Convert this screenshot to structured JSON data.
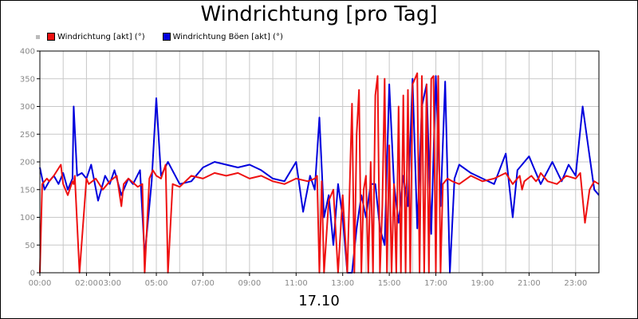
{
  "chart_data": {
    "type": "line",
    "title": "Windrichtung [pro Tag]",
    "xlabel": "17.10",
    "ylabel": "",
    "ylim": [
      0,
      400
    ],
    "yticks": [
      0,
      50,
      100,
      150,
      200,
      250,
      300,
      350,
      400
    ],
    "xlim": [
      0,
      24
    ],
    "xticks": [
      {
        "x": 0,
        "label": "00:00"
      },
      {
        "x": 2,
        "label": "02:00"
      },
      {
        "x": 3,
        "label": "03:00"
      },
      {
        "x": 5,
        "label": "05:00"
      },
      {
        "x": 7,
        "label": "07:00"
      },
      {
        "x": 9,
        "label": "09:00"
      },
      {
        "x": 11,
        "label": "11:00"
      },
      {
        "x": 13,
        "label": "13:00"
      },
      {
        "x": 15,
        "label": "15:00"
      },
      {
        "x": 17,
        "label": "17:00"
      },
      {
        "x": 19,
        "label": "19:00"
      },
      {
        "x": 21,
        "label": "21:00"
      },
      {
        "x": 23,
        "label": "23:00"
      }
    ],
    "grid": true,
    "legend_position": "top-left",
    "series": [
      {
        "name": "Windrichtung [akt] (°)",
        "color": "#ee1111",
        "x": [
          0,
          0.1,
          0.3,
          0.4,
          0.6,
          0.9,
          1.0,
          1.2,
          1.4,
          1.45,
          1.5,
          1.7,
          2.0,
          2.1,
          2.4,
          2.7,
          3.0,
          3.3,
          3.5,
          3.6,
          3.8,
          4.2,
          4.4,
          4.5,
          4.7,
          4.85,
          5.0,
          5.2,
          5.4,
          5.5,
          5.7,
          6.0,
          6.5,
          7.0,
          7.5,
          8.0,
          8.5,
          9.0,
          9.5,
          10.0,
          10.5,
          11.0,
          11.5,
          11.8,
          11.9,
          12.0,
          12.1,
          12.2,
          12.4,
          12.6,
          12.8,
          13.0,
          13.2,
          13.4,
          13.5,
          13.6,
          13.7,
          13.8,
          13.9,
          14.0,
          14.1,
          14.2,
          14.3,
          14.4,
          14.5,
          14.6,
          14.7,
          14.8,
          14.9,
          15.0,
          15.1,
          15.2,
          15.3,
          15.4,
          15.5,
          15.6,
          15.7,
          15.8,
          15.9,
          16.0,
          16.1,
          16.2,
          16.3,
          16.4,
          16.5,
          16.6,
          16.7,
          16.8,
          16.9,
          17.0,
          17.1,
          17.2,
          17.3,
          17.4,
          17.5,
          17.7,
          18.0,
          18.5,
          19.0,
          19.5,
          20.0,
          20.3,
          20.6,
          20.7,
          20.8,
          21.1,
          21.3,
          21.4,
          21.5,
          21.8,
          22.2,
          22.6,
          23.0,
          23.2,
          23.4,
          23.6,
          23.8,
          24.0
        ],
        "y": [
          0,
          160,
          170,
          165,
          175,
          195,
          160,
          140,
          165,
          160,
          175,
          0,
          170,
          160,
          170,
          150,
          165,
          175,
          120,
          160,
          170,
          155,
          160,
          0,
          170,
          185,
          175,
          170,
          195,
          0,
          160,
          155,
          175,
          170,
          180,
          175,
          180,
          170,
          175,
          165,
          160,
          170,
          165,
          170,
          175,
          0,
          165,
          0,
          130,
          150,
          0,
          140,
          0,
          305,
          0,
          250,
          330,
          0,
          150,
          175,
          0,
          200,
          0,
          320,
          355,
          0,
          120,
          350,
          0,
          230,
          0,
          160,
          0,
          300,
          0,
          320,
          0,
          330,
          0,
          340,
          350,
          360,
          0,
          355,
          0,
          340,
          0,
          350,
          355,
          0,
          355,
          0,
          160,
          165,
          170,
          165,
          160,
          175,
          165,
          170,
          180,
          160,
          175,
          150,
          165,
          175,
          165,
          170,
          180,
          165,
          160,
          175,
          170,
          180,
          90,
          150,
          165,
          160
        ]
      },
      {
        "name": "Windrichtung Böen [akt] (°)",
        "color": "#0000dd",
        "x": [
          0,
          0.2,
          0.4,
          0.6,
          0.8,
          1.0,
          1.2,
          1.4,
          1.45,
          1.6,
          1.8,
          2.0,
          2.2,
          2.5,
          2.8,
          3.0,
          3.2,
          3.5,
          3.8,
          4.0,
          4.3,
          4.5,
          4.8,
          5.0,
          5.2,
          5.5,
          6.0,
          6.5,
          7.0,
          7.5,
          8.0,
          8.5,
          9.0,
          9.5,
          10.0,
          10.5,
          11.0,
          11.3,
          11.6,
          11.8,
          12.0,
          12.2,
          12.4,
          12.6,
          12.8,
          13.0,
          13.2,
          13.4,
          13.6,
          13.8,
          14.0,
          14.2,
          14.4,
          14.6,
          14.8,
          15.0,
          15.2,
          15.4,
          15.6,
          15.8,
          16.0,
          16.2,
          16.4,
          16.6,
          16.8,
          17.0,
          17.2,
          17.4,
          17.6,
          17.8,
          18.0,
          18.5,
          19.0,
          19.5,
          20.0,
          20.3,
          20.5,
          21.0,
          21.2,
          21.5,
          22.0,
          22.4,
          22.7,
          23.0,
          23.3,
          23.6,
          23.8,
          24.0
        ],
        "y": [
          190,
          150,
          165,
          175,
          160,
          180,
          150,
          170,
          300,
          175,
          180,
          170,
          195,
          130,
          175,
          160,
          185,
          140,
          170,
          160,
          185,
          30,
          165,
          315,
          175,
          200,
          160,
          165,
          190,
          200,
          195,
          190,
          195,
          185,
          170,
          165,
          200,
          110,
          175,
          150,
          280,
          100,
          140,
          50,
          160,
          100,
          0,
          0,
          80,
          140,
          100,
          160,
          160,
          80,
          50,
          340,
          160,
          90,
          175,
          120,
          350,
          80,
          300,
          340,
          70,
          355,
          120,
          345,
          0,
          170,
          195,
          180,
          170,
          160,
          215,
          100,
          185,
          210,
          190,
          160,
          200,
          165,
          195,
          175,
          300,
          210,
          150,
          140
        ]
      }
    ]
  }
}
